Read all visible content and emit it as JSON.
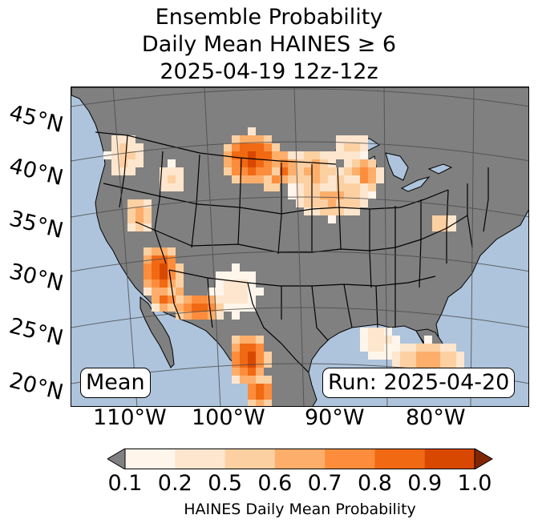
{
  "title": {
    "line1": "Ensemble Probability",
    "line2": "Daily Mean HAINES ≥ 6",
    "line3": "2025-04-19 12z-12z"
  },
  "map": {
    "lat_labels": [
      "45°N",
      "40°N",
      "35°N",
      "30°N",
      "25°N",
      "20°N"
    ],
    "lon_labels": [
      "110°W",
      "100°W",
      "90°W",
      "80°W"
    ],
    "mean_label": "Mean",
    "run_label": "Run: 2025-04-20",
    "colors": {
      "ocean": "#aec4dc",
      "land": "#808080",
      "state_lines": "#000000",
      "graticule": "#4a4a4a"
    }
  },
  "colorbar": {
    "label": "HAINES Daily Mean Probability",
    "ticks": [
      "0.1",
      "0.2",
      "0.5",
      "0.6",
      "0.7",
      "0.8",
      "0.9",
      "1.0"
    ],
    "under_color": "#808080",
    "over_color": "#7f2704",
    "colors": [
      "#fff5eb",
      "#fee6ce",
      "#fdd0a2",
      "#fdae6b",
      "#fd8d3c",
      "#f16913",
      "#d94801"
    ]
  }
}
